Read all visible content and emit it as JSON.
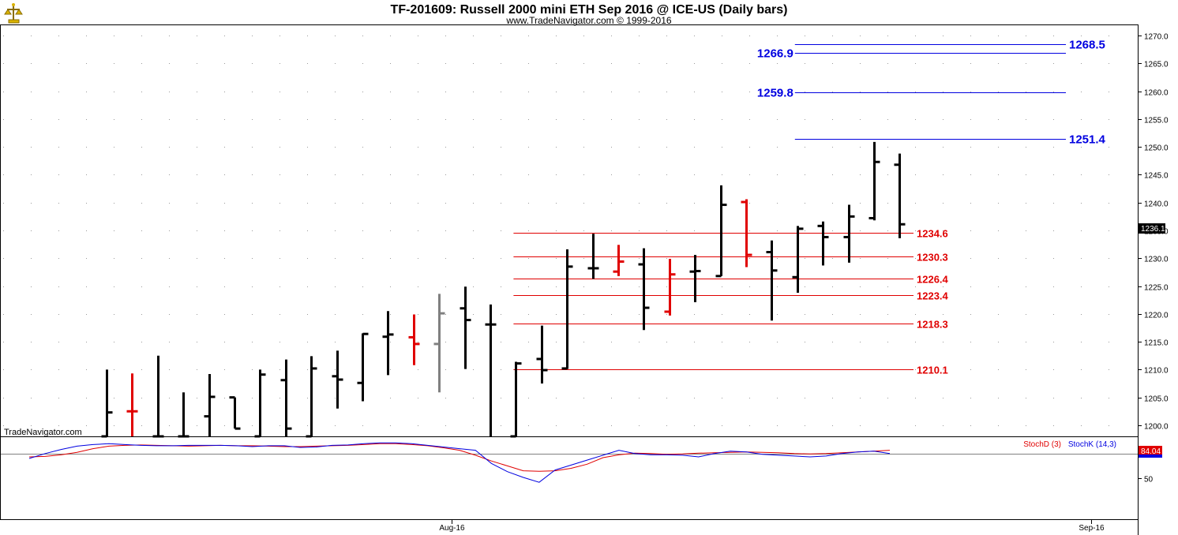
{
  "header": {
    "title": "TF-201609:  Russell 2000 mini ETH Sep 2016 @ ICE-US  (Daily bars)",
    "subtitle": "www.TradeNavigator.com © 1999-2016",
    "logo_icon": "trade-navigator-logo-icon"
  },
  "watermark": "TradeNavigator.com",
  "colors": {
    "up_bar": "#000000",
    "down_bar": "#e00000",
    "neutral_bar": "#808080",
    "support_line": "#e00000",
    "target_line": "#0000e0",
    "stoch_d": "#e00000",
    "stoch_k": "#0000e0",
    "last_price_bg": "#000000",
    "stoch_value_bg": "#e00000"
  },
  "chart_data": [
    {
      "type": "ohlc",
      "title": "TF-201609:  Russell 2000 mini ETH Sep 2016 @ ICE-US  (Daily bars)",
      "ylim": [
        1198,
        1272
      ],
      "y_ticks": [
        "1200.0",
        "1205.0",
        "1210.0",
        "1215.0",
        "1220.0",
        "1225.0",
        "1230.0",
        "1235.0",
        "1240.0",
        "1245.0",
        "1250.0",
        "1255.0",
        "1260.0",
        "1265.0",
        "1270.0"
      ],
      "x_ticks": [
        {
          "label": "Aug-16",
          "bar_index": 13.5
        },
        {
          "label": "Sep-16",
          "bar_index": 38.5
        }
      ],
      "grid": "dotted",
      "last_price": "1236.1",
      "bars": [
        {
          "open": 1198.0,
          "high": 1210.0,
          "low": 1198.0,
          "close": 1202.3,
          "color": "up"
        },
        {
          "open": 1202.5,
          "high": 1209.3,
          "low": 1198.0,
          "close": 1202.5,
          "color": "down"
        },
        {
          "open": 1198.0,
          "high": 1212.5,
          "low": 1198.0,
          "close": 1198.0,
          "color": "up"
        },
        {
          "open": 1198.0,
          "high": 1205.9,
          "low": 1198.0,
          "close": 1198.0,
          "color": "up"
        },
        {
          "open": 1201.6,
          "high": 1209.2,
          "low": 1198.0,
          "close": 1205.1,
          "color": "up"
        },
        {
          "open": 1205.0,
          "high": 1205.0,
          "low": 1199.4,
          "close": 1199.4,
          "color": "up"
        },
        {
          "open": 1198.0,
          "high": 1210.0,
          "low": 1198.0,
          "close": 1209.1,
          "color": "up"
        },
        {
          "open": 1208.1,
          "high": 1211.8,
          "low": 1198.0,
          "close": 1199.4,
          "color": "up"
        },
        {
          "open": 1198.0,
          "high": 1212.4,
          "low": 1198.0,
          "close": 1210.2,
          "color": "up"
        },
        {
          "open": 1208.8,
          "high": 1213.4,
          "low": 1203.0,
          "close": 1208.2,
          "color": "up"
        },
        {
          "open": 1207.6,
          "high": 1216.5,
          "low": 1204.3,
          "close": 1216.4,
          "color": "up"
        },
        {
          "open": 1215.9,
          "high": 1220.5,
          "low": 1209.0,
          "close": 1216.3,
          "color": "up"
        },
        {
          "open": 1215.8,
          "high": 1219.9,
          "low": 1210.8,
          "close": 1214.6,
          "color": "down"
        },
        {
          "open": 1214.6,
          "high": 1223.6,
          "low": 1205.9,
          "close": 1220.1,
          "color": "neutral"
        },
        {
          "open": 1221.0,
          "high": 1224.9,
          "low": 1210.1,
          "close": 1218.9,
          "color": "up"
        },
        {
          "open": 1218.1,
          "high": 1221.7,
          "low": 1198.0,
          "close": 1218.1,
          "color": "up"
        },
        {
          "open": 1198.0,
          "high": 1211.4,
          "low": 1198.0,
          "close": 1211.1,
          "color": "up"
        },
        {
          "open": 1211.9,
          "high": 1217.9,
          "low": 1207.5,
          "close": 1209.9,
          "color": "up"
        },
        {
          "open": 1210.2,
          "high": 1231.6,
          "low": 1210.1,
          "close": 1228.5,
          "color": "up"
        },
        {
          "open": 1228.2,
          "high": 1234.4,
          "low": 1226.3,
          "close": 1228.2,
          "color": "up"
        },
        {
          "open": 1227.6,
          "high": 1232.4,
          "low": 1226.8,
          "close": 1229.4,
          "color": "down"
        },
        {
          "open": 1228.9,
          "high": 1231.8,
          "low": 1217.1,
          "close": 1221.1,
          "color": "up"
        },
        {
          "open": 1220.4,
          "high": 1229.9,
          "low": 1219.7,
          "close": 1227.1,
          "color": "down"
        },
        {
          "open": 1227.6,
          "high": 1230.6,
          "low": 1222.1,
          "close": 1227.7,
          "color": "up"
        },
        {
          "open": 1226.8,
          "high": 1243.1,
          "low": 1226.8,
          "close": 1239.6,
          "color": "up"
        },
        {
          "open": 1240.1,
          "high": 1240.6,
          "low": 1228.4,
          "close": 1230.6,
          "color": "down"
        },
        {
          "open": 1231.1,
          "high": 1233.2,
          "low": 1218.8,
          "close": 1227.8,
          "color": "up"
        },
        {
          "open": 1226.6,
          "high": 1235.8,
          "low": 1223.8,
          "close": 1235.3,
          "color": "up"
        },
        {
          "open": 1235.8,
          "high": 1236.6,
          "low": 1228.7,
          "close": 1233.8,
          "color": "up"
        },
        {
          "open": 1233.8,
          "high": 1239.6,
          "low": 1229.2,
          "close": 1237.5,
          "color": "up"
        },
        {
          "open": 1237.2,
          "high": 1250.9,
          "low": 1236.8,
          "close": 1247.3,
          "color": "up"
        },
        {
          "open": 1246.8,
          "high": 1248.8,
          "low": 1233.6,
          "close": 1236.1,
          "color": "up"
        }
      ],
      "levels": [
        {
          "value": 1234.6,
          "label": "1234.6",
          "color": "red",
          "from_bar": 16,
          "label_side": "right"
        },
        {
          "value": 1230.3,
          "label": "1230.3",
          "color": "red",
          "from_bar": 16,
          "label_side": "right"
        },
        {
          "value": 1226.4,
          "label": "1226.4",
          "color": "red",
          "from_bar": 16,
          "label_side": "right"
        },
        {
          "value": 1223.4,
          "label": "1223.4",
          "color": "red",
          "from_bar": 16,
          "label_side": "right"
        },
        {
          "value": 1218.3,
          "label": "1218.3",
          "color": "red",
          "from_bar": 16,
          "label_side": "right"
        },
        {
          "value": 1210.1,
          "label": "1210.1",
          "color": "red",
          "from_bar": 16,
          "label_side": "right"
        },
        {
          "value": 1268.5,
          "label": "1268.5",
          "color": "blue",
          "from_bar": 27,
          "label_side": "right"
        },
        {
          "value": 1266.9,
          "label": "1266.9",
          "color": "blue",
          "from_bar": 27,
          "label_side": "left"
        },
        {
          "value": 1259.8,
          "label": "1259.8",
          "color": "blue",
          "from_bar": 27,
          "label_side": "left"
        },
        {
          "value": 1251.4,
          "label": "1251.4",
          "color": "blue",
          "from_bar": 27,
          "label_side": "right"
        }
      ]
    },
    {
      "type": "line",
      "title": "",
      "ylim": [
        0,
        100
      ],
      "y_ticks": [
        "50"
      ],
      "reference_line": 80,
      "value_label": "84.04",
      "series": [
        {
          "name": "StochD (3)",
          "color": "red",
          "values": [
            76,
            76.5,
            78.5,
            81.5,
            86,
            89,
            90,
            90.5,
            90,
            89.5,
            89,
            89.5,
            90,
            89.5,
            89.5,
            89,
            88.5,
            88.5,
            89,
            89.5,
            90,
            91,
            92,
            92,
            91,
            89.5,
            87,
            84,
            78,
            71,
            65,
            59,
            58.5,
            59,
            62,
            67,
            75,
            78.5,
            80.5,
            80,
            79,
            79.5,
            80.5,
            81,
            81.5,
            82,
            81.5,
            81,
            80,
            79.5,
            80,
            81,
            82,
            83,
            84
          ]
        },
        {
          "name": "StochK (14,3)",
          "color": "blue",
          "values": [
            74,
            80,
            85,
            89,
            91,
            92,
            91,
            90,
            89.5,
            89.5,
            90,
            90,
            90,
            89.5,
            88.5,
            89.5,
            89.5,
            87.5,
            88,
            90,
            90.5,
            92,
            93,
            93,
            92,
            90,
            88,
            86,
            84,
            68,
            58,
            51,
            45,
            60,
            66,
            72,
            78,
            84,
            80,
            78.5,
            78.5,
            78,
            76,
            80,
            83,
            82,
            79,
            78,
            77,
            76,
            77,
            80,
            82,
            83,
            80
          ]
        }
      ]
    }
  ]
}
